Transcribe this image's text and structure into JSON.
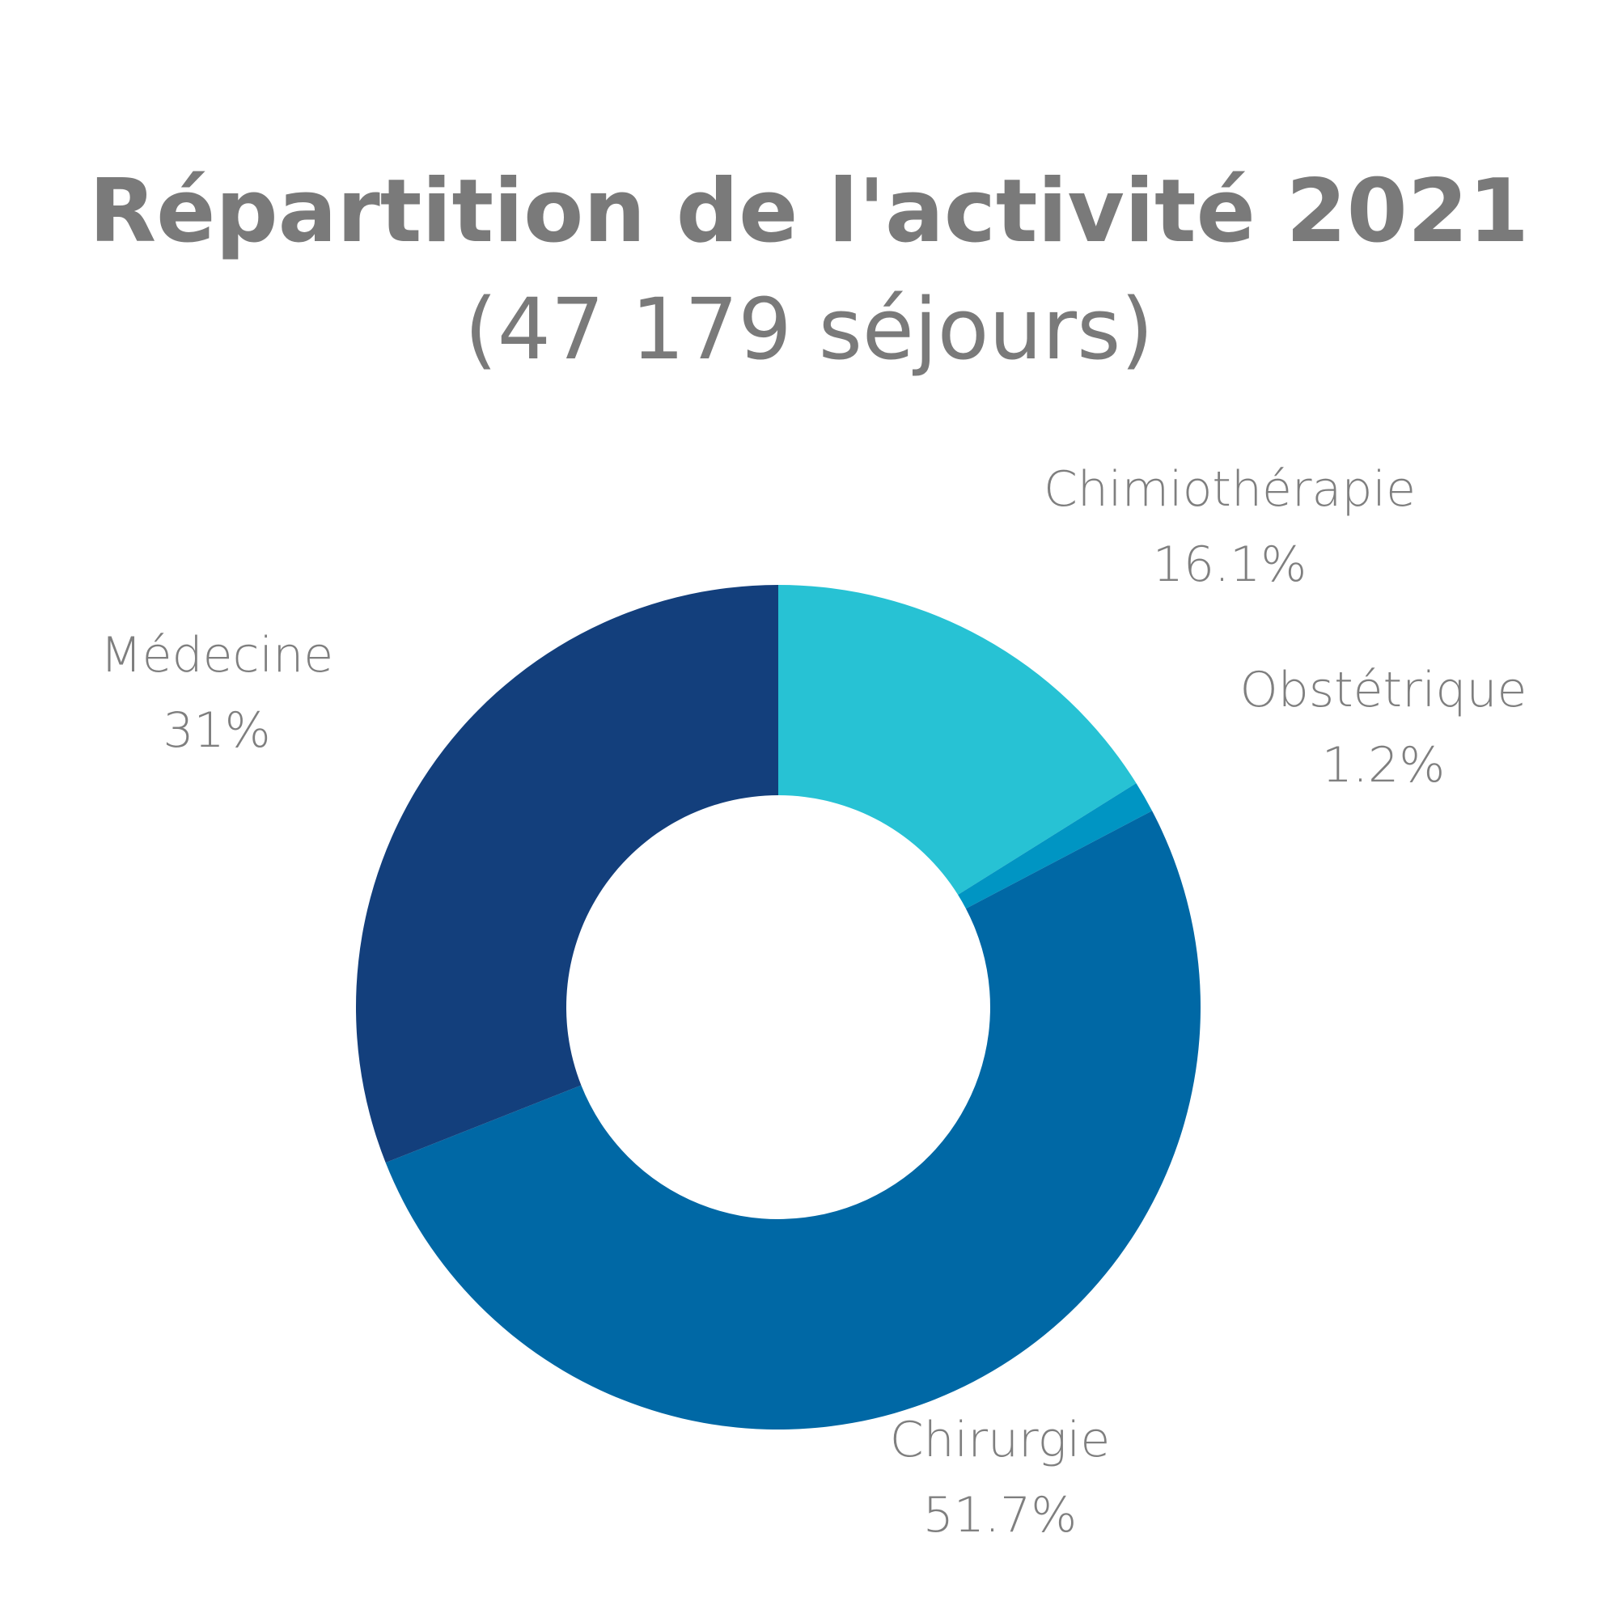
{
  "chart_data": {
    "type": "pie",
    "title": "Répartition de l'activité 2021",
    "subtitle": "(47 179 séjours)",
    "donut": true,
    "colors": {
      "Chimiothérapie": "#27c2d4",
      "Obstétrique": "#0095c3",
      "Chirurgie": "#0068a5",
      "Médecine": "#133f7c"
    },
    "slices": [
      {
        "label": "Chimiothérapie",
        "value": 16.1,
        "display": "16.1%"
      },
      {
        "label": "Obstétrique",
        "value": 1.2,
        "display": "1.2%"
      },
      {
        "label": "Chirurgie",
        "value": 51.7,
        "display": "51.7%"
      },
      {
        "label": "Médecine",
        "value": 31,
        "display": "31%"
      }
    ]
  }
}
